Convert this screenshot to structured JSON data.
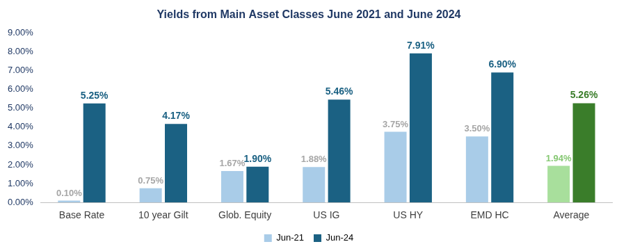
{
  "chart_data": {
    "type": "bar",
    "title": "Yields from Main Asset Classes June 2021 and June 2024",
    "categories": [
      "Base Rate",
      "10 year Gilt",
      "Glob. Equity",
      "US IG",
      "US HY",
      "EMD HC",
      "Average"
    ],
    "series": [
      {
        "name": "Jun-21",
        "color": "#a9cce8",
        "colors": [
          "#a9cce8",
          "#a9cce8",
          "#a9cce8",
          "#a9cce8",
          "#a9cce8",
          "#a9cce8",
          "#a8df9c"
        ],
        "values": [
          0.1,
          0.75,
          1.67,
          1.88,
          3.75,
          3.5,
          1.94
        ],
        "value_labels": [
          "0.10%",
          "0.75%",
          "1.67%",
          "1.88%",
          "3.75%",
          "3.50%",
          "1.94%"
        ]
      },
      {
        "name": "Jun-24",
        "color": "#1b6183",
        "colors": [
          "#1b6183",
          "#1b6183",
          "#1b6183",
          "#1b6183",
          "#1b6183",
          "#1b6183",
          "#3a7d2a"
        ],
        "values": [
          5.25,
          4.17,
          1.9,
          5.46,
          7.91,
          6.9,
          5.26
        ],
        "value_labels": [
          "5.25%",
          "4.17%",
          "1.90%",
          "5.46%",
          "7.91%",
          "6.90%",
          "5.26%"
        ]
      }
    ],
    "ylim": [
      0,
      9
    ],
    "yticks": [
      {
        "value": 0,
        "label": "0.00%"
      },
      {
        "value": 1,
        "label": "1.00%"
      },
      {
        "value": 2,
        "label": "2.00%"
      },
      {
        "value": 3,
        "label": "3.00%"
      },
      {
        "value": 4,
        "label": "4.00%"
      },
      {
        "value": 5,
        "label": "5.00%"
      },
      {
        "value": 6,
        "label": "6.00%"
      },
      {
        "value": 7,
        "label": "7.00%"
      },
      {
        "value": 8,
        "label": "8.00%"
      },
      {
        "value": 9,
        "label": "9.00%"
      }
    ],
    "grid": false,
    "legend": "bottom",
    "data_labels": true
  }
}
